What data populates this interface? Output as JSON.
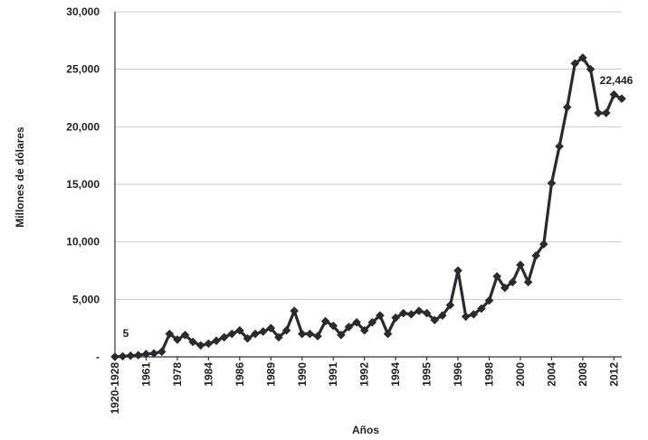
{
  "chart_data": {
    "type": "line",
    "title": "",
    "xlabel": "Años",
    "ylabel": "Millones de dólares",
    "ylim": [
      0,
      30000
    ],
    "ytick_labels": [
      "-",
      "5,000",
      "10,000",
      "15,000",
      "20,000",
      "25,000",
      "30,000"
    ],
    "ytick_values": [
      0,
      5000,
      10000,
      15000,
      20000,
      25000,
      30000
    ],
    "xtick_labels": [
      "1920-1928",
      "1961",
      "1978",
      "1984",
      "1986",
      "1989",
      "1990",
      "1991",
      "1992",
      "1994",
      "1995",
      "1996",
      "1998",
      "2000",
      "2004",
      "2008",
      "2012"
    ],
    "xtick_positions": [
      0,
      4,
      8,
      12,
      16,
      20,
      24,
      28,
      32,
      36,
      40,
      44,
      48,
      52,
      56,
      60,
      64
    ],
    "grid": "horizontal",
    "legend": "none",
    "color": "#2b2b2f",
    "annotations": [
      {
        "text": "5",
        "index": 0
      },
      {
        "text": "22,446",
        "index": 65
      }
    ],
    "series": [
      {
        "values": [
          5,
          50,
          100,
          150,
          250,
          300,
          450,
          2000,
          1500,
          1900,
          1300,
          1000,
          1150,
          1400,
          1700,
          2000,
          2300,
          1600,
          2000,
          2200,
          2500,
          1700,
          2300,
          4000,
          2000,
          2000,
          1800,
          3100,
          2700,
          1900,
          2600,
          3000,
          2300,
          3000,
          3600,
          2000,
          3400,
          3800,
          3700,
          4000,
          3800,
          3200,
          3600,
          4500,
          7500,
          3500,
          3700,
          4200,
          4900,
          7000,
          6000,
          6500,
          8000,
          6500,
          8800,
          9800,
          15100,
          18300,
          21700,
          25500,
          26000,
          25000,
          21200,
          21200,
          22800,
          22446
        ]
      }
    ]
  }
}
